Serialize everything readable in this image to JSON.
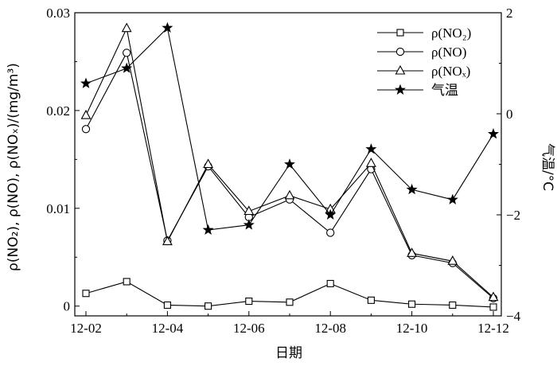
{
  "chart_data": {
    "type": "line",
    "x": [
      "12-02",
      "12-03",
      "12-04",
      "12-05",
      "12-06",
      "12-07",
      "12-08",
      "12-09",
      "12-10",
      "12-11",
      "12-12"
    ],
    "xticks": [
      "12-02",
      "12-04",
      "12-06",
      "12-08",
      "12-10",
      "12-12"
    ],
    "xlabel": "日期",
    "ylabel_left": "ρ(NO₂), ρ(NO), ρ(NOₓ)/(mg/m³)",
    "ylabel_right": "气温/°C",
    "ylim_left": [
      -0.001,
      0.03
    ],
    "ylim_right": [
      -4,
      2
    ],
    "yticks_left": [
      "0",
      "0.01",
      "0.02",
      "0.03"
    ],
    "yticks_right": [
      "−4",
      "−2",
      "0",
      "2"
    ],
    "legend_position": "top-right",
    "series": [
      {
        "name": "ρ(NO₂)",
        "axis": "left",
        "marker": "square",
        "values": [
          0.0013,
          0.0025,
          0.0001,
          0.0,
          0.0005,
          0.0004,
          0.0023,
          0.0006,
          0.0002,
          0.0001,
          -0.0001
        ]
      },
      {
        "name": "ρ(NO)",
        "axis": "left",
        "marker": "circle",
        "values": [
          0.0181,
          0.0259,
          0.0067,
          0.0143,
          0.0091,
          0.0109,
          0.0075,
          0.014,
          0.0052,
          0.0044,
          0.0008
        ]
      },
      {
        "name": "ρ(NOₓ)",
        "axis": "left",
        "marker": "triangle",
        "values": [
          0.0195,
          0.0284,
          0.0066,
          0.0145,
          0.0097,
          0.0113,
          0.0099,
          0.0146,
          0.0054,
          0.0046,
          0.0009
        ]
      },
      {
        "name": "气温",
        "axis": "right",
        "marker": "star",
        "values": [
          0.6,
          0.9,
          1.7,
          -2.3,
          -2.2,
          -1.0,
          -2.0,
          -0.7,
          -1.5,
          -1.7,
          -0.4
        ]
      }
    ]
  }
}
